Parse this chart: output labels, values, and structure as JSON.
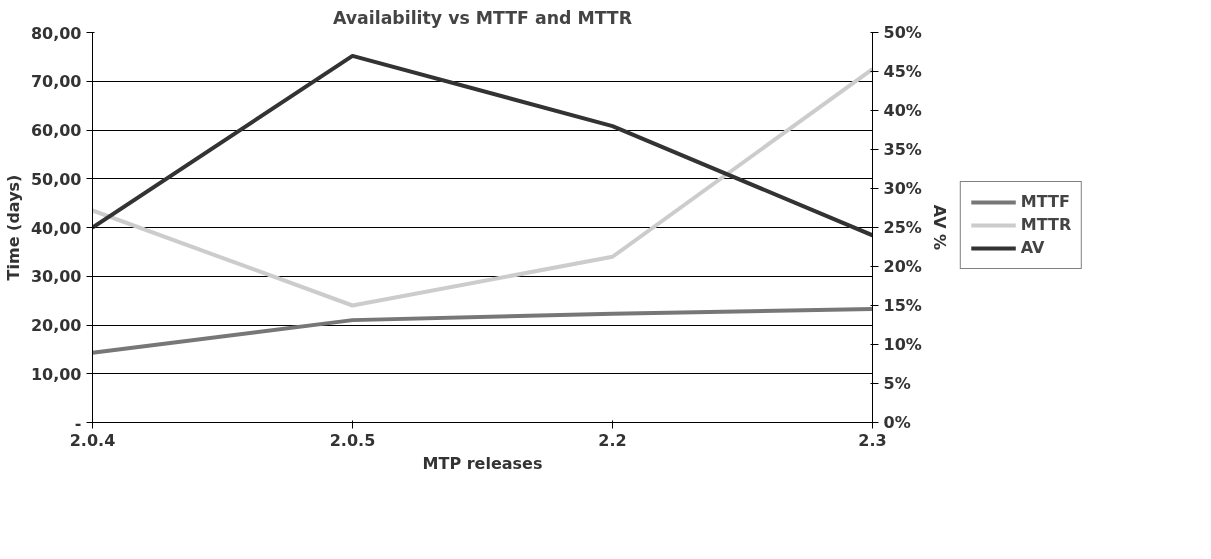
{
  "chart_data": {
    "type": "line",
    "title": "Availability vs MTTF and MTTR",
    "xlabel": "MTP releases",
    "ylabel": "Time (days)",
    "y2label": "AV %",
    "categories": [
      "2.0.4",
      "2.0.5",
      "2.2",
      "2.3"
    ],
    "series": [
      {
        "name": "MTTF",
        "color": "#777777",
        "values": [
          14.3,
          21.0,
          22.3,
          23.3
        ]
      },
      {
        "name": "MTTR",
        "color": "#cccccc",
        "values": [
          43.5,
          24.0,
          34.0,
          72.5
        ]
      },
      {
        "name": "AV",
        "color": "#333333",
        "values": [
          25,
          47,
          38,
          24
        ],
        "axis": "y2"
      }
    ],
    "ylim": [
      0,
      80
    ],
    "yticks": [
      {
        "value": 0,
        "label": "-"
      },
      {
        "value": 10,
        "label": "10,00"
      },
      {
        "value": 20,
        "label": "20,00"
      },
      {
        "value": 30,
        "label": "30,00"
      },
      {
        "value": 40,
        "label": "40,00"
      },
      {
        "value": 50,
        "label": "50,00"
      },
      {
        "value": 60,
        "label": "60,00"
      },
      {
        "value": 70,
        "label": "70,00"
      },
      {
        "value": 80,
        "label": "80,00"
      }
    ],
    "y2lim": [
      0,
      50
    ],
    "y2ticks": [
      {
        "value": 0,
        "label": "0%"
      },
      {
        "value": 5,
        "label": "5%"
      },
      {
        "value": 10,
        "label": "10%"
      },
      {
        "value": 15,
        "label": "15%"
      },
      {
        "value": 20,
        "label": "20%"
      },
      {
        "value": 25,
        "label": "25%"
      },
      {
        "value": 30,
        "label": "30%"
      },
      {
        "value": 35,
        "label": "35%"
      },
      {
        "value": 40,
        "label": "40%"
      },
      {
        "value": 45,
        "label": "45%"
      },
      {
        "value": 50,
        "label": "50%"
      }
    ],
    "grid": "y",
    "legend": "right",
    "line_style": "solid",
    "marker": "none"
  }
}
